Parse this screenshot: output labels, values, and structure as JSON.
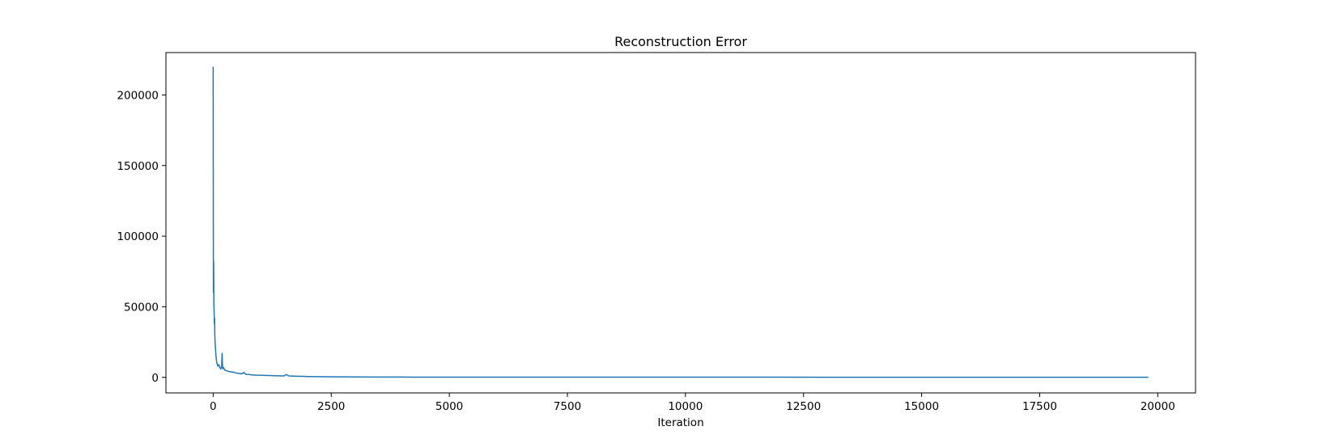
{
  "chart_data": {
    "type": "line",
    "title": "Reconstruction Error",
    "xlabel": "Iteration",
    "ylabel": "",
    "xlim": [
      -1000,
      20800
    ],
    "ylim": [
      -11000,
      230000
    ],
    "xticks": [
      0,
      2500,
      5000,
      7500,
      10000,
      12500,
      15000,
      17500,
      20000
    ],
    "xtick_labels": [
      "0",
      "2500",
      "5000",
      "7500",
      "10000",
      "12500",
      "15000",
      "17500",
      "20000"
    ],
    "yticks": [
      0,
      50000,
      100000,
      150000,
      200000
    ],
    "ytick_labels": [
      "0",
      "50000",
      "100000",
      "150000",
      "200000"
    ],
    "grid": false,
    "series": [
      {
        "color": "#1f77b4",
        "x": [
          0,
          5,
          10,
          15,
          20,
          25,
          30,
          35,
          40,
          50,
          60,
          70,
          80,
          90,
          100,
          120,
          140,
          160,
          180,
          190,
          200,
          220,
          250,
          300,
          350,
          400,
          450,
          500,
          550,
          600,
          650,
          700,
          750,
          800,
          900,
          1000,
          1100,
          1200,
          1300,
          1400,
          1500,
          1550,
          1600,
          1700,
          1800,
          1900,
          2000,
          2200,
          2400,
          2600,
          2800,
          3000,
          3500,
          4000,
          5000,
          6000,
          8000,
          10000,
          12000,
          14000,
          16000,
          18000,
          19800
        ],
        "y": [
          220000,
          60000,
          82000,
          52000,
          47000,
          38000,
          42000,
          30000,
          25000,
          20000,
          15000,
          12000,
          10000,
          9000,
          8000,
          9000,
          7000,
          6000,
          8000,
          17000,
          6000,
          7000,
          5000,
          4500,
          4000,
          3800,
          3500,
          3000,
          2800,
          2500,
          3500,
          2000,
          2200,
          1800,
          1600,
          1500,
          1400,
          1300,
          1200,
          1100,
          1000,
          2000,
          1000,
          900,
          800,
          700,
          600,
          500,
          450,
          400,
          350,
          300,
          250,
          200,
          180,
          160,
          150,
          140,
          130,
          120,
          110,
          100,
          100
        ]
      }
    ]
  }
}
